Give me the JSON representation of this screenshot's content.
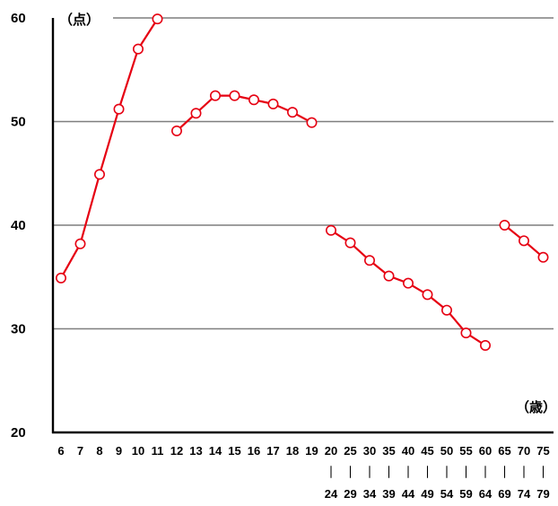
{
  "chart_data": {
    "type": "line",
    "y_unit": "（点）",
    "x_unit": "（歳）",
    "ylim": [
      20,
      60
    ],
    "y_ticks": [
      20,
      30,
      40,
      50,
      60
    ],
    "grid": true,
    "categories": [
      {
        "top": "6",
        "bottom": ""
      },
      {
        "top": "7",
        "bottom": ""
      },
      {
        "top": "8",
        "bottom": ""
      },
      {
        "top": "9",
        "bottom": ""
      },
      {
        "top": "10",
        "bottom": ""
      },
      {
        "top": "11",
        "bottom": ""
      },
      {
        "top": "12",
        "bottom": ""
      },
      {
        "top": "13",
        "bottom": ""
      },
      {
        "top": "14",
        "bottom": ""
      },
      {
        "top": "15",
        "bottom": ""
      },
      {
        "top": "16",
        "bottom": ""
      },
      {
        "top": "17",
        "bottom": ""
      },
      {
        "top": "18",
        "bottom": ""
      },
      {
        "top": "19",
        "bottom": ""
      },
      {
        "top": "20",
        "bottom": "24"
      },
      {
        "top": "25",
        "bottom": "29"
      },
      {
        "top": "30",
        "bottom": "34"
      },
      {
        "top": "35",
        "bottom": "39"
      },
      {
        "top": "40",
        "bottom": "44"
      },
      {
        "top": "45",
        "bottom": "49"
      },
      {
        "top": "50",
        "bottom": "54"
      },
      {
        "top": "55",
        "bottom": "59"
      },
      {
        "top": "60",
        "bottom": "64"
      },
      {
        "top": "65",
        "bottom": "69"
      },
      {
        "top": "70",
        "bottom": "74"
      },
      {
        "top": "75",
        "bottom": "79"
      }
    ],
    "range_mark": "｜",
    "segments": [
      {
        "start": 0,
        "values": [
          34.9,
          38.2,
          44.9,
          51.2,
          57.0,
          59.9
        ]
      },
      {
        "start": 6,
        "values": [
          49.1,
          50.8,
          52.5,
          52.5,
          52.1,
          51.7,
          50.9,
          49.9
        ]
      },
      {
        "start": 14,
        "values": [
          39.5,
          38.3,
          36.6,
          35.1,
          34.4,
          33.3,
          31.8,
          29.6,
          28.4
        ]
      },
      {
        "start": 23,
        "values": [
          40.0,
          38.5,
          36.9
        ]
      }
    ],
    "colors": {
      "line": "#e60012",
      "marker_fill": "#ffffff",
      "grid": "#7f7f7f",
      "axis": "#000000"
    }
  }
}
